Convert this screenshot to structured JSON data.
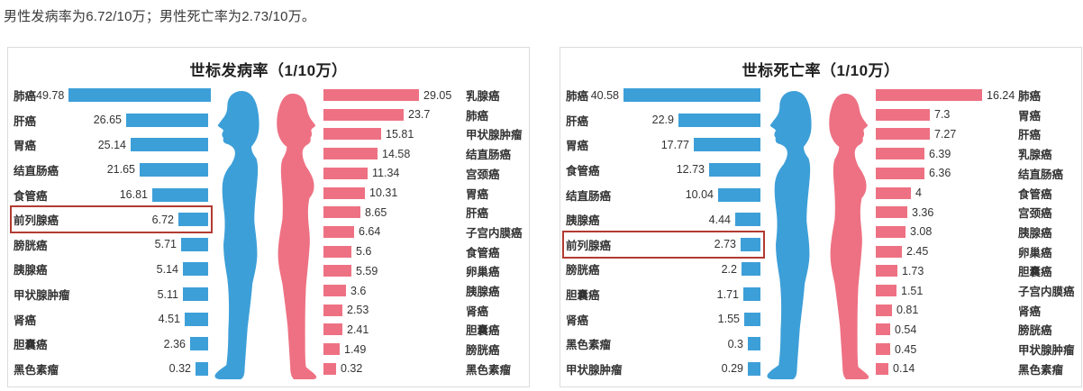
{
  "summary_text": "男性发病率为6.72/10万；男性死亡率为2.73/10万。",
  "colors": {
    "male": "#3d9fd8",
    "female": "#ee7183",
    "highlight_border": "#b23b32",
    "label_text": "#333333",
    "panel_border": "#dcdcdc"
  },
  "icons": {
    "male_figure": "male-profile-silhouette-facing-left",
    "female_figure": "female-profile-silhouette-facing-right"
  },
  "chart_data": [
    {
      "type": "bar",
      "title": "世标发病率（1/10万）",
      "layout": "back-to-back horizontal pyramid; male bars on left (right-anchored), female bars on right (left-anchored), human figures in center; no axes or gridlines",
      "highlight_category": "前列腺癌",
      "male": {
        "color": "#3d9fd8",
        "categories": [
          "肺癌",
          "肝癌",
          "胃癌",
          "结直肠癌",
          "食管癌",
          "前列腺癌",
          "膀胱癌",
          "胰腺癌",
          "甲状腺肿瘤",
          "肾癌",
          "胆囊癌",
          "黑色素瘤"
        ],
        "values": [
          49.78,
          26.65,
          25.14,
          21.65,
          16.81,
          6.72,
          5.71,
          5.14,
          5.11,
          4.51,
          2.36,
          0.32
        ]
      },
      "female": {
        "color": "#ee7183",
        "categories": [
          "乳腺癌",
          "肺癌",
          "甲状腺肿瘤",
          "结直肠癌",
          "宫颈癌",
          "胃癌",
          "肝癌",
          "子宫内膜癌",
          "食管癌",
          "卵巢癌",
          "胰腺癌",
          "肾癌",
          "胆囊癌",
          "膀胱癌",
          "黑色素瘤"
        ],
        "values": [
          29.05,
          23.7,
          15.81,
          14.58,
          11.34,
          10.31,
          8.65,
          6.64,
          5.6,
          5.59,
          3.6,
          2.53,
          2.41,
          1.49,
          0.32
        ]
      }
    },
    {
      "type": "bar",
      "title": "世标死亡率（1/10万）",
      "layout": "back-to-back horizontal pyramid; male bars on left (right-anchored), female bars on right (left-anchored), human figures in center; no axes or gridlines",
      "highlight_category": "前列腺癌",
      "male": {
        "color": "#3d9fd8",
        "categories": [
          "肺癌",
          "肝癌",
          "胃癌",
          "食管癌",
          "结直肠癌",
          "胰腺癌",
          "前列腺癌",
          "膀胱癌",
          "胆囊癌",
          "肾癌",
          "黑色素瘤",
          "甲状腺肿瘤"
        ],
        "values": [
          40.58,
          22.9,
          17.77,
          12.73,
          10.04,
          4.44,
          2.73,
          2.2,
          1.71,
          1.55,
          0.3,
          0.29
        ]
      },
      "female": {
        "color": "#ee7183",
        "categories": [
          "肺癌",
          "胃癌",
          "肝癌",
          "乳腺癌",
          "结直肠癌",
          "食管癌",
          "宫颈癌",
          "胰腺癌",
          "卵巢癌",
          "胆囊癌",
          "子宫内膜癌",
          "肾癌",
          "膀胱癌",
          "甲状腺肿瘤",
          "黑色素瘤"
        ],
        "values": [
          16.24,
          7.3,
          7.27,
          6.39,
          6.36,
          4,
          3.36,
          3.08,
          2.45,
          1.73,
          1.51,
          0.81,
          0.54,
          0.45,
          0.14
        ]
      }
    }
  ]
}
